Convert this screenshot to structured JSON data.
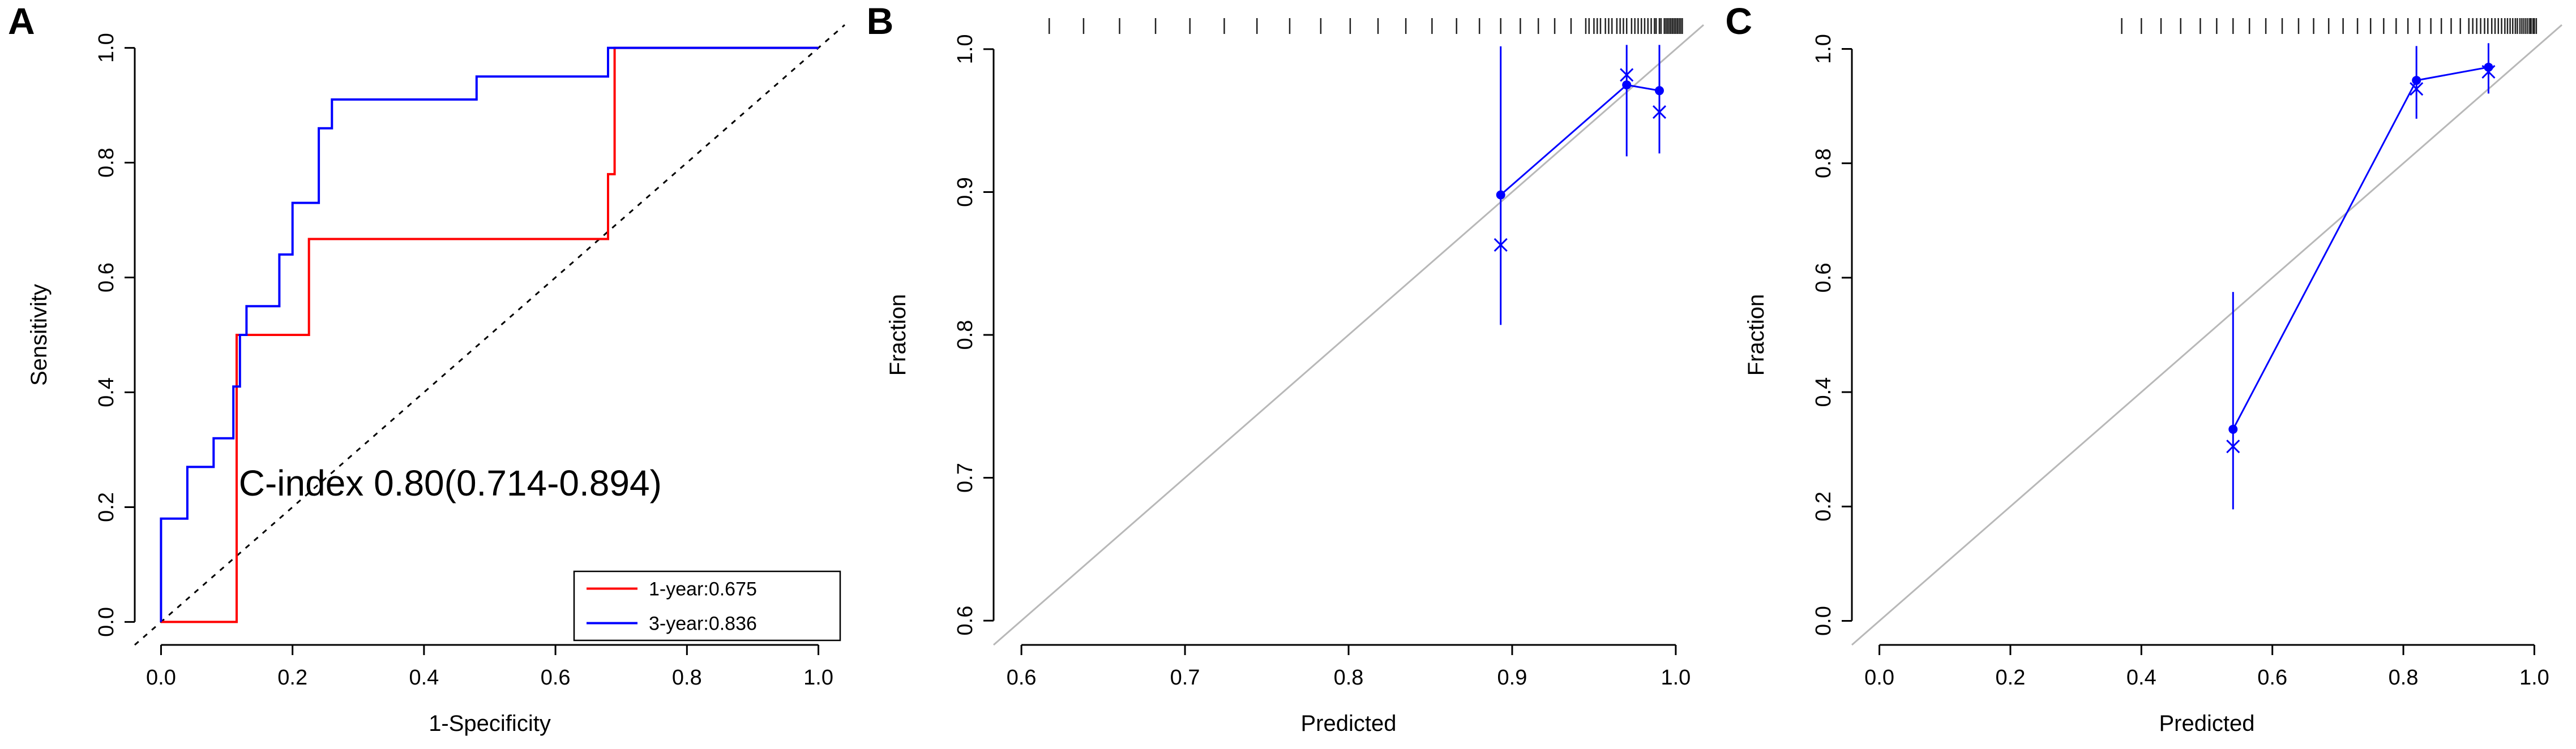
{
  "figure": {
    "background": "#ffffff",
    "accent_red": "#ff0000",
    "accent_blue": "#0000ff",
    "reference_gray": "#b8b8b8"
  },
  "chart_data": [
    {
      "panel_label": "A",
      "type": "line",
      "subtype": "roc-step-curves",
      "xlabel": "1-Specificity",
      "ylabel": "Sensitivity",
      "xlim": [
        -0.04,
        1.04
      ],
      "ylim": [
        -0.04,
        1.04
      ],
      "xticks": [
        "0.0",
        "0.2",
        "0.4",
        "0.6",
        "0.8",
        "1.0"
      ],
      "yticks": [
        "0.0",
        "0.2",
        "0.4",
        "0.6",
        "0.8",
        "1.0"
      ],
      "grid": false,
      "annotation": {
        "text": "C-index 0.80(0.714-0.894)",
        "x": 0.44,
        "y": 0.22
      },
      "reference_line": {
        "from": [
          -0.04,
          -0.04
        ],
        "to": [
          1.04,
          1.04
        ],
        "style": "dotted",
        "color": "#000000"
      },
      "legend": {
        "position": "bottom-right",
        "entries": [
          {
            "label": "1-year:0.675",
            "color": "#ff0000"
          },
          {
            "label": "3-year:0.836",
            "color": "#0000ff"
          }
        ]
      },
      "series": [
        {
          "name": "1-year:0.675",
          "color": "#ff0000",
          "points": [
            [
              0,
              0
            ],
            [
              0.115,
              0
            ],
            [
              0.115,
              0.5
            ],
            [
              0.225,
              0.5
            ],
            [
              0.225,
              0.667
            ],
            [
              0.68,
              0.667
            ],
            [
              0.68,
              0.78
            ],
            [
              0.69,
              0.78
            ],
            [
              0.69,
              1.0
            ],
            [
              1.0,
              1.0
            ]
          ]
        },
        {
          "name": "3-year:0.836",
          "color": "#0000ff",
          "points": [
            [
              0,
              0
            ],
            [
              0,
              0.18
            ],
            [
              0.04,
              0.18
            ],
            [
              0.04,
              0.27
            ],
            [
              0.08,
              0.27
            ],
            [
              0.08,
              0.32
            ],
            [
              0.11,
              0.32
            ],
            [
              0.11,
              0.41
            ],
            [
              0.12,
              0.41
            ],
            [
              0.12,
              0.5
            ],
            [
              0.13,
              0.5
            ],
            [
              0.13,
              0.55
            ],
            [
              0.18,
              0.55
            ],
            [
              0.18,
              0.64
            ],
            [
              0.2,
              0.64
            ],
            [
              0.2,
              0.73
            ],
            [
              0.24,
              0.73
            ],
            [
              0.24,
              0.86
            ],
            [
              0.26,
              0.86
            ],
            [
              0.26,
              0.91
            ],
            [
              0.48,
              0.91
            ],
            [
              0.48,
              0.95
            ],
            [
              0.68,
              0.95
            ],
            [
              0.68,
              1.0
            ],
            [
              1.0,
              1.0
            ]
          ]
        }
      ]
    },
    {
      "panel_label": "B",
      "type": "scatter",
      "subtype": "calibration",
      "xlabel": "Predicted",
      "ylabel": "Fraction",
      "xlim": [
        0.583,
        1.017
      ],
      "ylim": [
        0.583,
        1.017
      ],
      "xticks": [
        "0.6",
        "0.7",
        "0.8",
        "0.9",
        "1.0"
      ],
      "yticks": [
        "0.6",
        "0.7",
        "0.8",
        "0.9",
        "1.0"
      ],
      "grid": false,
      "color": "#0000ff",
      "reference_line": {
        "from": [
          0.583,
          0.583
        ],
        "to": [
          1.017,
          1.017
        ],
        "style": "solid",
        "color": "#b8b8b8"
      },
      "points": [
        {
          "x": 0.893,
          "y": 0.898,
          "err_lo": 0.807,
          "err_hi": 1.002,
          "xmark_y": 0.863
        },
        {
          "x": 0.97,
          "y": 0.975,
          "err_lo": 0.925,
          "err_hi": 1.003,
          "xmark_y": 0.982
        },
        {
          "x": 0.99,
          "y": 0.971,
          "err_lo": 0.927,
          "err_hi": 1.003,
          "xmark_y": 0.956
        }
      ],
      "rug": [
        0.617,
        0.638,
        0.66,
        0.682,
        0.703,
        0.724,
        0.744,
        0.764,
        0.783,
        0.801,
        0.818,
        0.835,
        0.851,
        0.866,
        0.88,
        0.893,
        0.905,
        0.916,
        0.926,
        0.936,
        0.945,
        0.947,
        0.95,
        0.952,
        0.954,
        0.957,
        0.959,
        0.961,
        0.964,
        0.966,
        0.968,
        0.97,
        0.973,
        0.975,
        0.977,
        0.979,
        0.981,
        0.983,
        0.985,
        0.987,
        0.988,
        0.99,
        0.991,
        0.993,
        0.994,
        0.995,
        0.996,
        0.997,
        0.998,
        0.999,
        1.0,
        1.001,
        1.002,
        1.003,
        1.004
      ]
    },
    {
      "panel_label": "C",
      "type": "scatter",
      "subtype": "calibration",
      "xlabel": "Predicted",
      "ylabel": "Fraction",
      "xlim": [
        -0.042,
        1.042
      ],
      "ylim": [
        -0.042,
        1.042
      ],
      "xticks": [
        "0.0",
        "0.2",
        "0.4",
        "0.6",
        "0.8",
        "1.0"
      ],
      "yticks": [
        "0.0",
        "0.2",
        "0.4",
        "0.6",
        "0.8",
        "1.0"
      ],
      "grid": false,
      "color": "#0000ff",
      "reference_line": {
        "from": [
          -0.042,
          -0.042
        ],
        "to": [
          1.042,
          1.042
        ],
        "style": "solid",
        "color": "#b8b8b8"
      },
      "points": [
        {
          "x": 0.54,
          "y": 0.335,
          "err_lo": 0.195,
          "err_hi": 0.575,
          "xmark_y": 0.305
        },
        {
          "x": 0.82,
          "y": 0.945,
          "err_lo": 0.878,
          "err_hi": 1.005,
          "xmark_y": 0.93
        },
        {
          "x": 0.93,
          "y": 0.968,
          "err_lo": 0.922,
          "err_hi": 1.01,
          "xmark_y": 0.96
        }
      ],
      "rug": [
        0.37,
        0.4,
        0.43,
        0.46,
        0.49,
        0.515,
        0.54,
        0.565,
        0.59,
        0.615,
        0.64,
        0.663,
        0.686,
        0.708,
        0.73,
        0.75,
        0.77,
        0.789,
        0.807,
        0.825,
        0.842,
        0.858,
        0.873,
        0.887,
        0.9,
        0.906,
        0.912,
        0.918,
        0.924,
        0.929,
        0.935,
        0.94,
        0.945,
        0.95,
        0.955,
        0.959,
        0.963,
        0.967,
        0.971,
        0.974,
        0.978,
        0.981,
        0.984,
        0.987,
        0.99,
        0.993,
        0.995,
        0.998,
        1.0,
        1.003
      ]
    }
  ]
}
